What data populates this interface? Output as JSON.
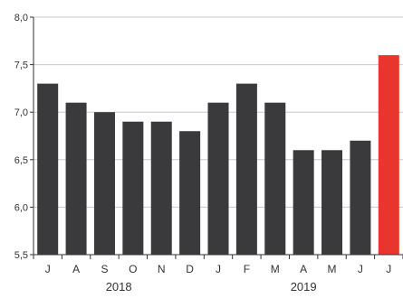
{
  "chart_data": {
    "type": "bar",
    "categories": [
      "J",
      "A",
      "S",
      "O",
      "N",
      "D",
      "J",
      "F",
      "M",
      "A",
      "M",
      "J",
      "J"
    ],
    "values": [
      7.3,
      7.1,
      7.0,
      6.9,
      6.9,
      6.8,
      7.1,
      7.3,
      7.1,
      6.6,
      6.6,
      6.7,
      7.6
    ],
    "year_groups": [
      {
        "label": "2018",
        "start_index": 0,
        "end_index": 5
      },
      {
        "label": "2019",
        "start_index": 6,
        "end_index": 12
      }
    ],
    "title": "",
    "xlabel": "",
    "ylabel": "",
    "ylim": [
      5.5,
      8.0
    ],
    "yticks": [
      5.5,
      6.0,
      6.5,
      7.0,
      7.5,
      8.0
    ],
    "ytick_labels": [
      "5,5",
      "6,0",
      "6,5",
      "7,0",
      "7,5",
      "8,0"
    ],
    "grid": true,
    "legend": "none",
    "colors": {
      "bar": "#3a3a3c",
      "highlight": "#e8362f",
      "grid": "#c8c8c8",
      "axis": "#333333"
    },
    "highlight_index": 12
  }
}
